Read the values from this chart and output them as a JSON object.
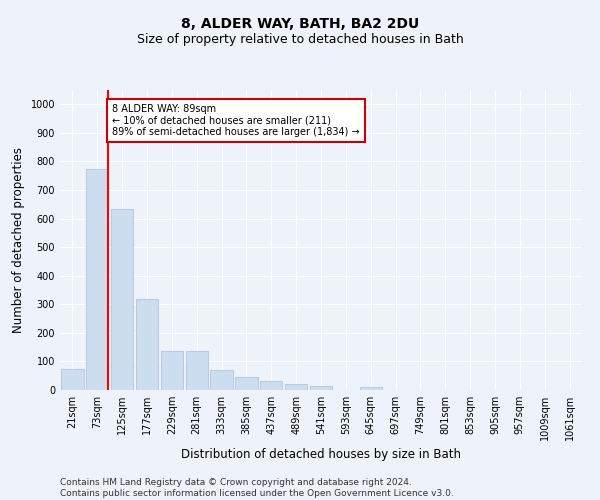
{
  "title": "8, ALDER WAY, BATH, BA2 2DU",
  "subtitle": "Size of property relative to detached houses in Bath",
  "xlabel": "Distribution of detached houses by size in Bath",
  "ylabel": "Number of detached properties",
  "categories": [
    "21sqm",
    "73sqm",
    "125sqm",
    "177sqm",
    "229sqm",
    "281sqm",
    "333sqm",
    "385sqm",
    "437sqm",
    "489sqm",
    "541sqm",
    "593sqm",
    "645sqm",
    "697sqm",
    "749sqm",
    "801sqm",
    "853sqm",
    "905sqm",
    "957sqm",
    "1009sqm",
    "1061sqm"
  ],
  "values": [
    75,
    775,
    635,
    320,
    135,
    135,
    70,
    45,
    30,
    20,
    15,
    0,
    10,
    0,
    0,
    0,
    0,
    0,
    0,
    0,
    0
  ],
  "bar_color": "#ccddf0",
  "bar_edge_color": "#aabbd8",
  "annotation_line1": "8 ALDER WAY: 89sqm",
  "annotation_line2": "← 10% of detached houses are smaller (211)",
  "annotation_line3": "89% of semi-detached houses are larger (1,834) →",
  "annotation_box_color": "#ffffff",
  "annotation_box_edge_color": "#cc0000",
  "ylim": [
    0,
    1050
  ],
  "yticks": [
    0,
    100,
    200,
    300,
    400,
    500,
    600,
    700,
    800,
    900,
    1000
  ],
  "background_color": "#eef2fb",
  "plot_bg_color": "#eef2fb",
  "grid_color": "#ffffff",
  "title_fontsize": 10,
  "subtitle_fontsize": 9,
  "tick_fontsize": 7,
  "label_fontsize": 8.5,
  "footer_fontsize": 6.5,
  "footer_line1": "Contains HM Land Registry data © Crown copyright and database right 2024.",
  "footer_line2": "Contains public sector information licensed under the Open Government Licence v3.0."
}
